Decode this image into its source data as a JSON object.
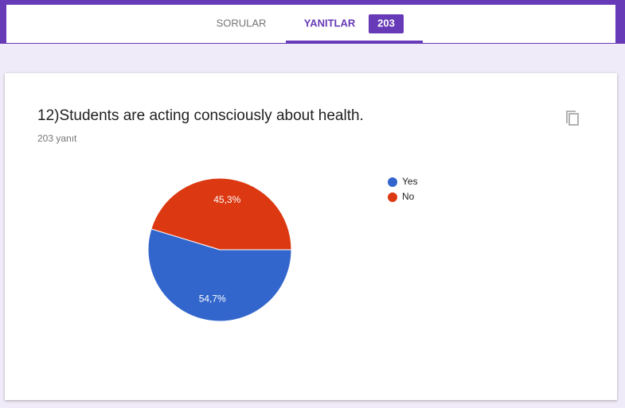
{
  "header": {
    "tabs": [
      "SORULAR",
      "YANITLAR"
    ],
    "response_badge": 203
  },
  "chart_data": {
    "type": "pie",
    "title": "12)Students are acting consciously about health.",
    "subtitle": "203 yanıt",
    "categories": [
      "Yes",
      "No"
    ],
    "values": [
      54.7,
      45.3
    ],
    "value_labels": [
      "54,7%",
      "45,3%"
    ],
    "colors": [
      "#3366cc",
      "#dc3912"
    ],
    "legend": "right"
  }
}
